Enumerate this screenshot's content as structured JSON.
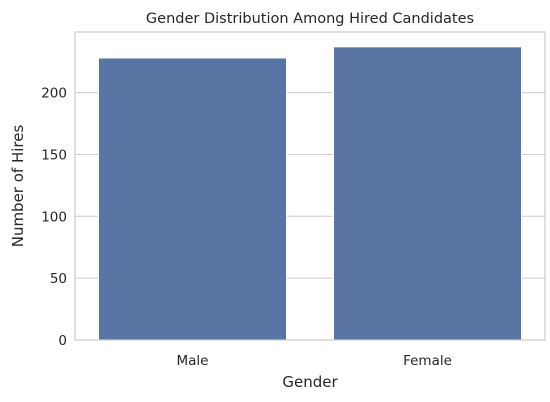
{
  "chart_data": {
    "type": "bar",
    "title": "Gender Distribution Among Hired Candidates",
    "xlabel": "Gender",
    "ylabel": "Number of Hires",
    "categories": [
      "Male",
      "Female"
    ],
    "values": [
      228,
      237
    ],
    "ylim": [
      0,
      249
    ],
    "yticks": [
      0,
      50,
      100,
      150,
      200
    ],
    "grid": true,
    "bar_color": "#5975a4"
  }
}
